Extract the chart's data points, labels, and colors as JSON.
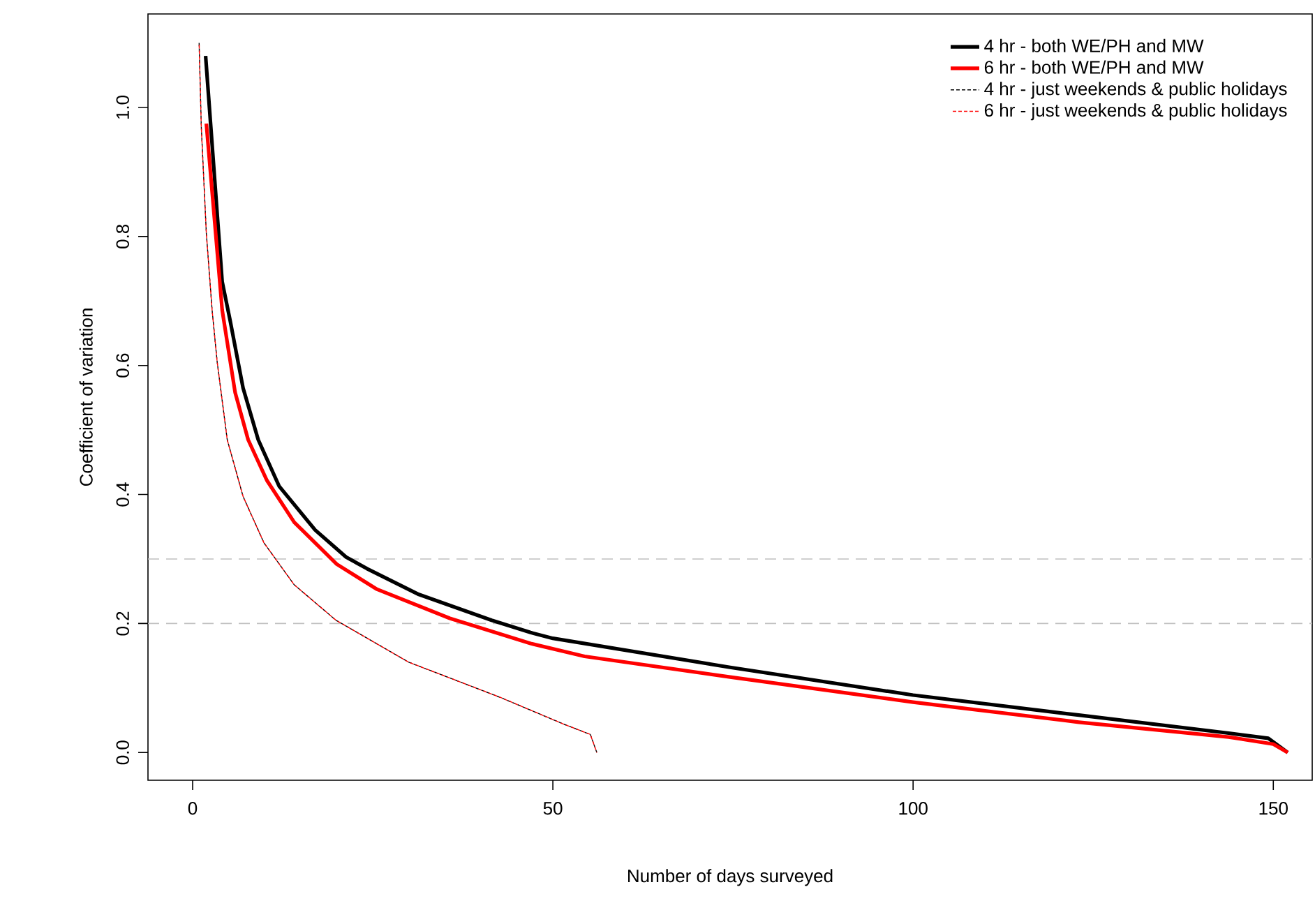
{
  "chart_data": {
    "type": "line",
    "xlabel": "Number of days surveyed",
    "ylabel": "Coefficient of variation",
    "xlim": [
      -6.2,
      155.4
    ],
    "ylim": [
      -0.043,
      1.145
    ],
    "xticks": [
      0,
      50,
      100,
      150
    ],
    "yticks": [
      {
        "value": 0,
        "label": "0.0"
      },
      {
        "value": 0.2,
        "label": "0.2"
      },
      {
        "value": 0.4,
        "label": "0.4"
      },
      {
        "value": 0.6,
        "label": "0.6"
      },
      {
        "value": 0.8,
        "label": "0.8"
      },
      {
        "value": 1,
        "label": "1.0"
      }
    ],
    "legend": "top right",
    "ref_lines": [
      {
        "axis": "y",
        "value": 0.3,
        "color": "#c0c0c0",
        "line_style": "dashed"
      },
      {
        "axis": "y",
        "value": 0.2,
        "color": "#c0c0c0",
        "line_style": "dashed"
      }
    ],
    "series": [
      {
        "name": "4 hr - both WE/PH and MW",
        "color": "#000000",
        "line_style": "solid",
        "x": [
          1.8,
          4.1,
          5.2,
          7.0,
          9.1,
          12,
          17,
          21.3,
          24.2,
          31.4,
          41.5,
          46.9,
          50,
          74.6,
          100,
          123,
          143.8,
          149.3,
          152
        ],
        "values": [
          1.08,
          0.73,
          0.67,
          0.565,
          0.485,
          0.413,
          0.345,
          0.303,
          0.285,
          0.245,
          0.205,
          0.186,
          0.177,
          0.132,
          0.089,
          0.058,
          0.03,
          0.022,
          0.0
        ]
      },
      {
        "name": "6 hr - both WE/PH and MW",
        "color": "#ff0000",
        "line_style": "solid",
        "x": [
          1.9,
          4.1,
          5.9,
          7.7,
          10.3,
          14.1,
          20,
          25.6,
          35.7,
          46.9,
          54.4,
          74.6,
          100,
          123,
          143.8,
          150,
          152
        ],
        "values": [
          0.975,
          0.686,
          0.558,
          0.485,
          0.422,
          0.357,
          0.292,
          0.253,
          0.208,
          0.169,
          0.149,
          0.117,
          0.078,
          0.047,
          0.024,
          0.013,
          0.0
        ]
      },
      {
        "name": "4 hr - just weekends & public holidays",
        "color": "#000000",
        "line_style": "dashed",
        "x": [
          0.9,
          1.2,
          1.9,
          2.7,
          3.4,
          4.8,
          7.0,
          9.9,
          14.1,
          19.9,
          30,
          42.8,
          51.5,
          55.2,
          56.1
        ],
        "values": [
          1.1,
          0.97,
          0.805,
          0.686,
          0.606,
          0.485,
          0.397,
          0.325,
          0.26,
          0.205,
          0.14,
          0.085,
          0.044,
          0.028,
          0.0
        ]
      },
      {
        "name": "6 hr - just weekends & public holidays",
        "color": "#ff0000",
        "line_style": "dashed",
        "x": [
          0.9,
          1.2,
          1.9,
          2.7,
          3.4,
          4.8,
          7.0,
          9.9,
          14.1,
          19.9,
          30,
          42.8,
          51.5,
          55.2,
          56.1
        ],
        "values": [
          1.1,
          0.97,
          0.805,
          0.686,
          0.606,
          0.485,
          0.397,
          0.325,
          0.26,
          0.205,
          0.14,
          0.085,
          0.044,
          0.028,
          0.0
        ]
      }
    ]
  }
}
